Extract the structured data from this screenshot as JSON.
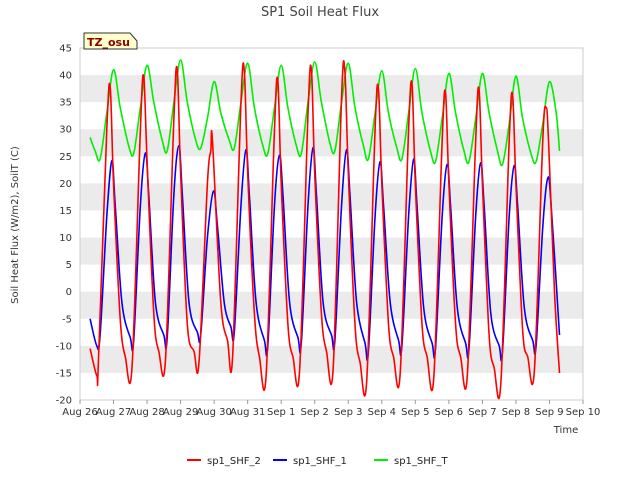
{
  "chart_data": {
    "type": "line",
    "title": "SP1 Soil Heat Flux",
    "xlabel": "Time",
    "ylabel": "Soil Heat Flux (W/m2), SoilT (C)",
    "annotation": "TZ_osu",
    "x_ticks": [
      "Aug 26",
      "Aug 27",
      "Aug 28",
      "Aug 29",
      "Aug 30",
      "Aug 31",
      "Sep 1",
      "Sep 2",
      "Sep 3",
      "Sep 4",
      "Sep 5",
      "Sep 6",
      "Sep 7",
      "Sep 8",
      "Sep 9",
      "Sep 10"
    ],
    "xlim": [
      "2023-08-26",
      "2023-09-10"
    ],
    "ylim": [
      -20,
      45
    ],
    "y_ticks": [
      -20,
      -15,
      -10,
      -5,
      0,
      5,
      10,
      15,
      20,
      25,
      30,
      35,
      40,
      45
    ],
    "grid": "horizontal bands",
    "legend_position": "bottom",
    "colors": {
      "sp1_SHF_2": "#ff0000",
      "sp1_SHF_1": "#0000ff",
      "sp1_SHF_T": "#00ee00",
      "band": "#ebebeb",
      "tz_bg": "#ffffcc"
    },
    "series": [
      {
        "name": "sp1_SHF_2",
        "color": "#ff0000",
        "x_day_offsets": [
          0.3,
          0.5,
          0.55,
          0.8,
          0.9,
          1.0,
          1.2,
          1.35,
          1.55,
          1.8,
          1.9,
          2.0,
          2.2,
          2.35,
          2.55,
          2.8,
          2.9,
          3.0,
          3.2,
          3.4,
          3.55,
          3.8,
          3.9,
          3.95,
          4.2,
          4.4,
          4.55,
          4.8,
          4.9,
          5.0,
          5.2,
          5.35,
          5.55,
          5.8,
          5.9,
          6.0,
          6.2,
          6.35,
          6.55,
          6.8,
          6.9,
          7.0,
          7.2,
          7.35,
          7.55,
          7.8,
          7.9,
          8.0,
          8.2,
          8.35,
          8.55,
          8.8,
          8.9,
          9.0,
          9.2,
          9.35,
          9.55,
          9.8,
          9.9,
          10.0,
          10.2,
          10.35,
          10.55,
          10.8,
          10.9,
          11.0,
          11.2,
          11.35,
          11.55,
          11.8,
          11.9,
          12.0,
          12.2,
          12.35,
          12.55,
          12.8,
          12.9,
          13.0,
          13.2,
          13.35,
          13.55,
          13.8,
          13.9,
          13.97,
          14.15,
          14.3
        ],
        "values": [
          -10.5,
          -15.5,
          -13,
          30,
          37.8,
          20,
          -5,
          -12,
          -14,
          30,
          39.8,
          24,
          -4,
          -11,
          -12.5,
          32,
          41,
          22,
          -6,
          -11,
          -13,
          20,
          26,
          27.8,
          -2,
          -9,
          -12,
          35,
          40.8,
          22,
          -4,
          -12,
          -15.5,
          30,
          39,
          20,
          -6,
          -12,
          -14.5,
          33,
          41,
          22,
          -4,
          -11,
          -14,
          36,
          40.6,
          22,
          -6,
          -13,
          -16.5,
          30,
          37.5,
          20,
          -6,
          -12,
          -15,
          30,
          38.3,
          20,
          -6,
          -12,
          -15.8,
          28,
          36.8,
          20,
          -6,
          -12,
          -15.5,
          28,
          37.4,
          20,
          -8,
          -14,
          -17,
          28,
          36.3,
          20,
          -7,
          -12,
          -14.5,
          28,
          34,
          28,
          0,
          -15
        ]
      },
      {
        "name": "sp1_SHF_1",
        "color": "#0000ff",
        "x_day_offsets": [
          0.3,
          0.5,
          0.6,
          0.8,
          0.95,
          1.05,
          1.25,
          1.5,
          1.6,
          1.8,
          1.95,
          2.05,
          2.25,
          2.5,
          2.6,
          2.8,
          2.95,
          3.05,
          3.25,
          3.5,
          3.6,
          3.8,
          3.98,
          4.1,
          4.3,
          4.5,
          4.6,
          4.8,
          4.95,
          5.05,
          5.25,
          5.5,
          5.6,
          5.8,
          5.95,
          6.05,
          6.25,
          6.5,
          6.6,
          6.8,
          6.95,
          7.05,
          7.25,
          7.5,
          7.6,
          7.8,
          7.95,
          8.05,
          8.25,
          8.5,
          8.6,
          8.8,
          8.95,
          9.05,
          9.25,
          9.5,
          9.6,
          9.8,
          9.95,
          10.05,
          10.25,
          10.5,
          10.6,
          10.8,
          10.95,
          11.05,
          11.25,
          11.5,
          11.6,
          11.8,
          11.95,
          12.05,
          12.25,
          12.5,
          12.6,
          12.8,
          12.95,
          13.05,
          13.25,
          13.5,
          13.6,
          13.8,
          13.95,
          14.05,
          14.3
        ],
        "values": [
          -5,
          -10,
          -8,
          14,
          24.2,
          16,
          -2,
          -8.5,
          -9,
          16,
          25.6,
          18,
          -2,
          -8,
          -8.5,
          18,
          27,
          18,
          -2,
          -7.5,
          -8,
          10,
          18.6,
          12,
          -2,
          -6.5,
          -7.5,
          16,
          26.2,
          18,
          -2,
          -9,
          -10,
          16,
          25.2,
          18,
          -2,
          -8.5,
          -9.5,
          16,
          26.6,
          18,
          -2,
          -8,
          -9,
          16,
          26.2,
          18,
          -2,
          -9.5,
          -11,
          14,
          24,
          16,
          -2,
          -9,
          -10,
          14,
          24.5,
          16,
          -3,
          -9.5,
          -10.5,
          14,
          23.5,
          16,
          -3,
          -9.5,
          -10.5,
          14,
          23.8,
          16,
          -4,
          -10,
          -11,
          14,
          23.3,
          16,
          -3,
          -9,
          -10,
          12,
          21,
          16,
          -8
        ]
      },
      {
        "name": "sp1_SHF_T",
        "color": "#00ee00",
        "x_day_offsets": [
          0.3,
          0.45,
          0.6,
          0.8,
          1.0,
          1.2,
          1.45,
          1.6,
          1.8,
          2.0,
          2.2,
          2.45,
          2.6,
          2.8,
          3.0,
          3.2,
          3.45,
          3.6,
          3.8,
          4.0,
          4.2,
          4.45,
          4.6,
          4.8,
          5.0,
          5.2,
          5.45,
          5.6,
          5.8,
          6.0,
          6.2,
          6.45,
          6.6,
          6.8,
          7.0,
          7.2,
          7.45,
          7.6,
          7.8,
          8.0,
          8.2,
          8.45,
          8.6,
          8.8,
          9.0,
          9.2,
          9.45,
          9.6,
          9.8,
          10.0,
          10.2,
          10.45,
          10.6,
          10.8,
          11.0,
          11.2,
          11.45,
          11.6,
          11.8,
          12.0,
          12.2,
          12.45,
          12.6,
          12.8,
          13.0,
          13.2,
          13.45,
          13.6,
          13.8,
          14.0,
          14.2,
          14.3
        ],
        "values": [
          28.5,
          26,
          24.5,
          33,
          41,
          34,
          27,
          25.5,
          34,
          41.8,
          35,
          28,
          26,
          35,
          42.8,
          35,
          28,
          26.5,
          32,
          38.8,
          33,
          28,
          26.5,
          35,
          42.2,
          34,
          27,
          25.5,
          34,
          41.8,
          34,
          27,
          25.5,
          35,
          42.4,
          35,
          27.5,
          26,
          35,
          42.2,
          34,
          27,
          24.5,
          33,
          40.8,
          33,
          26.5,
          24.5,
          33,
          41.2,
          33,
          26,
          24,
          32,
          40.3,
          33,
          26,
          24,
          32,
          40.3,
          33,
          26,
          23.5,
          31,
          39.8,
          32,
          25.5,
          24,
          31,
          38.8,
          33,
          26
        ]
      }
    ]
  }
}
